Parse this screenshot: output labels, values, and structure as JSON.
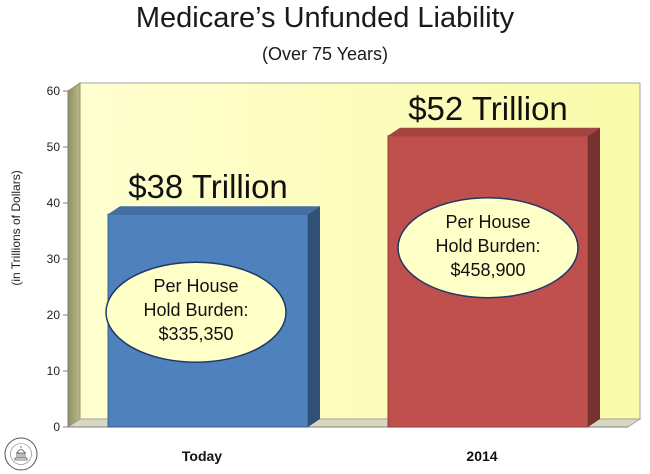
{
  "chart_data": {
    "type": "bar",
    "title": "Medicare’s Unfunded Liability",
    "subtitle": "(Over 75 Years)",
    "ylabel": "(in Trillions of Dollars)",
    "xlabel": "",
    "ylim": [
      0,
      60
    ],
    "yticks": [
      0,
      10,
      20,
      30,
      40,
      50,
      60
    ],
    "categories": [
      "Today",
      "2014"
    ],
    "values": [
      38,
      52
    ],
    "data_labels": [
      "$38 Trillion",
      "$52 Trillion"
    ],
    "annotations": [
      {
        "lines": [
          "Per House",
          "Hold Burden:",
          "$335,350"
        ]
      },
      {
        "lines": [
          "Per House",
          "Hold Burden:",
          "$458,900"
        ]
      }
    ],
    "bar_colors": [
      "#4f81bd",
      "#c0504d"
    ],
    "wall_color": "#ffffc8",
    "callout_color": "#ffffc8",
    "grid": false,
    "legend": "none"
  },
  "seal_text": "HOUSE BUDGET COMMITTEE"
}
